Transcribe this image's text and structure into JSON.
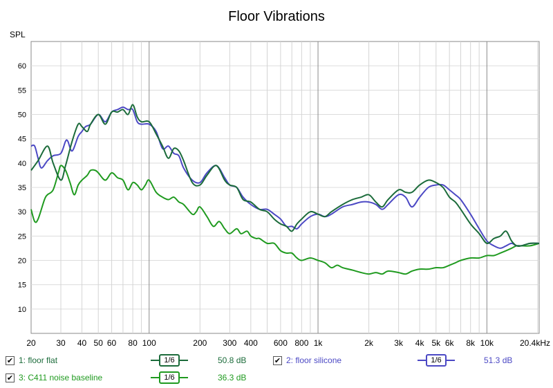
{
  "chart_data": {
    "type": "line",
    "title": "Floor Vibrations",
    "ylabel": "SPL",
    "xscale": "log",
    "xlim": [
      20,
      20400
    ],
    "ylim": [
      5,
      65
    ],
    "grid": true,
    "x_ticks": [
      {
        "v": 20,
        "label": "20"
      },
      {
        "v": 30,
        "label": "30"
      },
      {
        "v": 40,
        "label": "40"
      },
      {
        "v": 50,
        "label": "50"
      },
      {
        "v": 60,
        "label": "60"
      },
      {
        "v": 80,
        "label": "80"
      },
      {
        "v": 100,
        "label": "100"
      },
      {
        "v": 200,
        "label": "200"
      },
      {
        "v": 300,
        "label": "300"
      },
      {
        "v": 400,
        "label": "400"
      },
      {
        "v": 600,
        "label": "600"
      },
      {
        "v": 800,
        "label": "800"
      },
      {
        "v": 1000,
        "label": "1k"
      },
      {
        "v": 2000,
        "label": "2k"
      },
      {
        "v": 3000,
        "label": "3k"
      },
      {
        "v": 4000,
        "label": "4k"
      },
      {
        "v": 5000,
        "label": "5k"
      },
      {
        "v": 6000,
        "label": "6k"
      },
      {
        "v": 8000,
        "label": "8k"
      },
      {
        "v": 10000,
        "label": "10k"
      },
      {
        "v": 20400,
        "label": "20.4kHz"
      }
    ],
    "y_ticks": [
      10,
      15,
      20,
      25,
      30,
      35,
      40,
      45,
      50,
      55,
      60
    ],
    "series": [
      {
        "name": "1: floor flat",
        "color": "#1b6b3a",
        "x": [
          20,
          22,
          25,
          27,
          30,
          32,
          35,
          38,
          40,
          43,
          45,
          50,
          55,
          60,
          65,
          70,
          75,
          80,
          85,
          90,
          100,
          110,
          120,
          130,
          140,
          150,
          160,
          180,
          200,
          220,
          250,
          280,
          300,
          330,
          360,
          400,
          450,
          500,
          550,
          600,
          650,
          700,
          750,
          800,
          900,
          1000,
          1100,
          1200,
          1400,
          1600,
          1800,
          2000,
          2200,
          2400,
          2600,
          3000,
          3300,
          3600,
          4000,
          4500,
          5000,
          5500,
          6000,
          6500,
          7000,
          8000,
          9000,
          10000,
          11000,
          12000,
          13000,
          14000,
          15000,
          16000,
          18000,
          20400
        ],
        "y": [
          38.5,
          40.5,
          43.5,
          40.0,
          36.5,
          39.5,
          44.5,
          48.0,
          47.5,
          46.5,
          48.0,
          50.0,
          48.0,
          50.5,
          50.5,
          51.0,
          50.0,
          52.0,
          49.5,
          48.5,
          48.5,
          46.0,
          43.5,
          41.0,
          43.0,
          42.5,
          40.5,
          36.0,
          35.5,
          37.5,
          39.5,
          36.5,
          35.5,
          35.0,
          32.5,
          32.0,
          30.5,
          30.0,
          28.5,
          27.5,
          27.0,
          26.0,
          27.5,
          28.5,
          30.0,
          29.5,
          29.0,
          30.0,
          31.5,
          32.5,
          33.0,
          33.5,
          32.0,
          31.0,
          32.5,
          34.5,
          34.0,
          34.0,
          35.5,
          36.5,
          36.0,
          35.0,
          33.0,
          32.0,
          30.5,
          27.5,
          25.5,
          23.5,
          24.5,
          25.0,
          26.0,
          24.0,
          23.0,
          23.0,
          23.5,
          23.5
        ]
      },
      {
        "name": "2: floor silicone",
        "color": "#4b48c4",
        "x": [
          20,
          21,
          22,
          23,
          25,
          27,
          30,
          32,
          33,
          35,
          38,
          40,
          42,
          45,
          50,
          55,
          60,
          65,
          70,
          75,
          80,
          85,
          90,
          100,
          110,
          120,
          130,
          140,
          150,
          160,
          180,
          200,
          220,
          250,
          280,
          300,
          330,
          360,
          400,
          450,
          500,
          550,
          600,
          650,
          700,
          750,
          800,
          900,
          1000,
          1100,
          1200,
          1400,
          1600,
          1800,
          2000,
          2200,
          2400,
          2600,
          3000,
          3300,
          3600,
          4000,
          4500,
          5000,
          5500,
          6000,
          6500,
          7000,
          8000,
          9000,
          10000,
          11000,
          12000,
          13000,
          14000,
          15000,
          16000,
          18000,
          20400
        ],
        "y": [
          43.5,
          43.5,
          41.0,
          39.0,
          40.5,
          41.5,
          42.0,
          44.5,
          44.5,
          42.5,
          45.5,
          46.5,
          47.5,
          48.0,
          50.0,
          48.5,
          50.5,
          51.0,
          51.5,
          51.0,
          51.0,
          48.5,
          48.0,
          48.0,
          46.5,
          43.0,
          43.5,
          42.0,
          41.5,
          39.0,
          36.5,
          36.0,
          38.0,
          39.5,
          37.0,
          35.5,
          35.0,
          33.0,
          31.5,
          30.5,
          30.5,
          29.5,
          28.5,
          27.0,
          27.0,
          26.5,
          27.5,
          29.0,
          29.5,
          29.0,
          29.5,
          31.0,
          31.5,
          32.0,
          32.0,
          31.5,
          30.5,
          31.5,
          33.5,
          33.0,
          31.0,
          33.0,
          35.0,
          35.5,
          35.5,
          34.5,
          33.5,
          32.5,
          29.5,
          26.5,
          24.0,
          23.0,
          22.5,
          23.0,
          23.5,
          23.0,
          23.0,
          23.5,
          23.5
        ]
      },
      {
        "name": "3: C411 noise baseline",
        "color": "#1f9a1f",
        "x": [
          20,
          21,
          22,
          24,
          25,
          27,
          29,
          30,
          32,
          34,
          36,
          38,
          40,
          43,
          45,
          48,
          50,
          55,
          60,
          65,
          70,
          75,
          80,
          85,
          90,
          95,
          100,
          110,
          120,
          130,
          140,
          150,
          160,
          180,
          190,
          200,
          220,
          240,
          260,
          280,
          300,
          330,
          350,
          380,
          400,
          430,
          450,
          500,
          550,
          600,
          650,
          700,
          750,
          800,
          900,
          1000,
          1100,
          1200,
          1300,
          1400,
          1600,
          1800,
          2000,
          2200,
          2400,
          2600,
          3000,
          3300,
          3600,
          4000,
          4500,
          5000,
          5500,
          6000,
          6500,
          7000,
          8000,
          9000,
          10000,
          11000,
          12000,
          13000,
          14000,
          15000,
          16000,
          18000,
          20400
        ],
        "y": [
          30.5,
          28.0,
          28.5,
          32.5,
          33.5,
          34.5,
          38.0,
          39.5,
          38.5,
          36.0,
          33.5,
          35.5,
          36.5,
          37.5,
          38.5,
          38.5,
          38.0,
          36.5,
          38.0,
          37.0,
          36.5,
          34.5,
          36.0,
          35.5,
          34.5,
          35.5,
          36.5,
          34.0,
          33.0,
          32.5,
          33.0,
          32.0,
          31.5,
          29.5,
          30.0,
          31.0,
          29.0,
          27.0,
          28.0,
          26.5,
          25.5,
          26.5,
          25.5,
          26.0,
          25.0,
          24.5,
          24.5,
          23.5,
          23.5,
          22.0,
          21.5,
          21.5,
          20.5,
          20.0,
          20.5,
          20.0,
          19.5,
          18.5,
          19.0,
          18.5,
          18.0,
          17.5,
          17.2,
          17.5,
          17.2,
          17.8,
          17.5,
          17.2,
          17.8,
          18.2,
          18.2,
          18.5,
          18.5,
          19.0,
          19.5,
          20.0,
          20.5,
          20.5,
          21.0,
          21.0,
          21.5,
          22.0,
          22.5,
          23.0,
          23.0,
          23.0,
          23.5
        ]
      }
    ]
  },
  "legend": [
    {
      "label": "1: floor flat",
      "smoothing": "1/6",
      "level": "50.8 dB",
      "color": "#1b6b3a",
      "checked": "✔"
    },
    {
      "label": "2: floor silicone",
      "smoothing": "1/6",
      "level": "51.3 dB",
      "color": "#4b48c4",
      "checked": "✔"
    },
    {
      "label": "3: C411 noise baseline",
      "smoothing": "1/6",
      "level": "36.3 dB",
      "color": "#1f9a1f",
      "checked": "✔"
    }
  ]
}
